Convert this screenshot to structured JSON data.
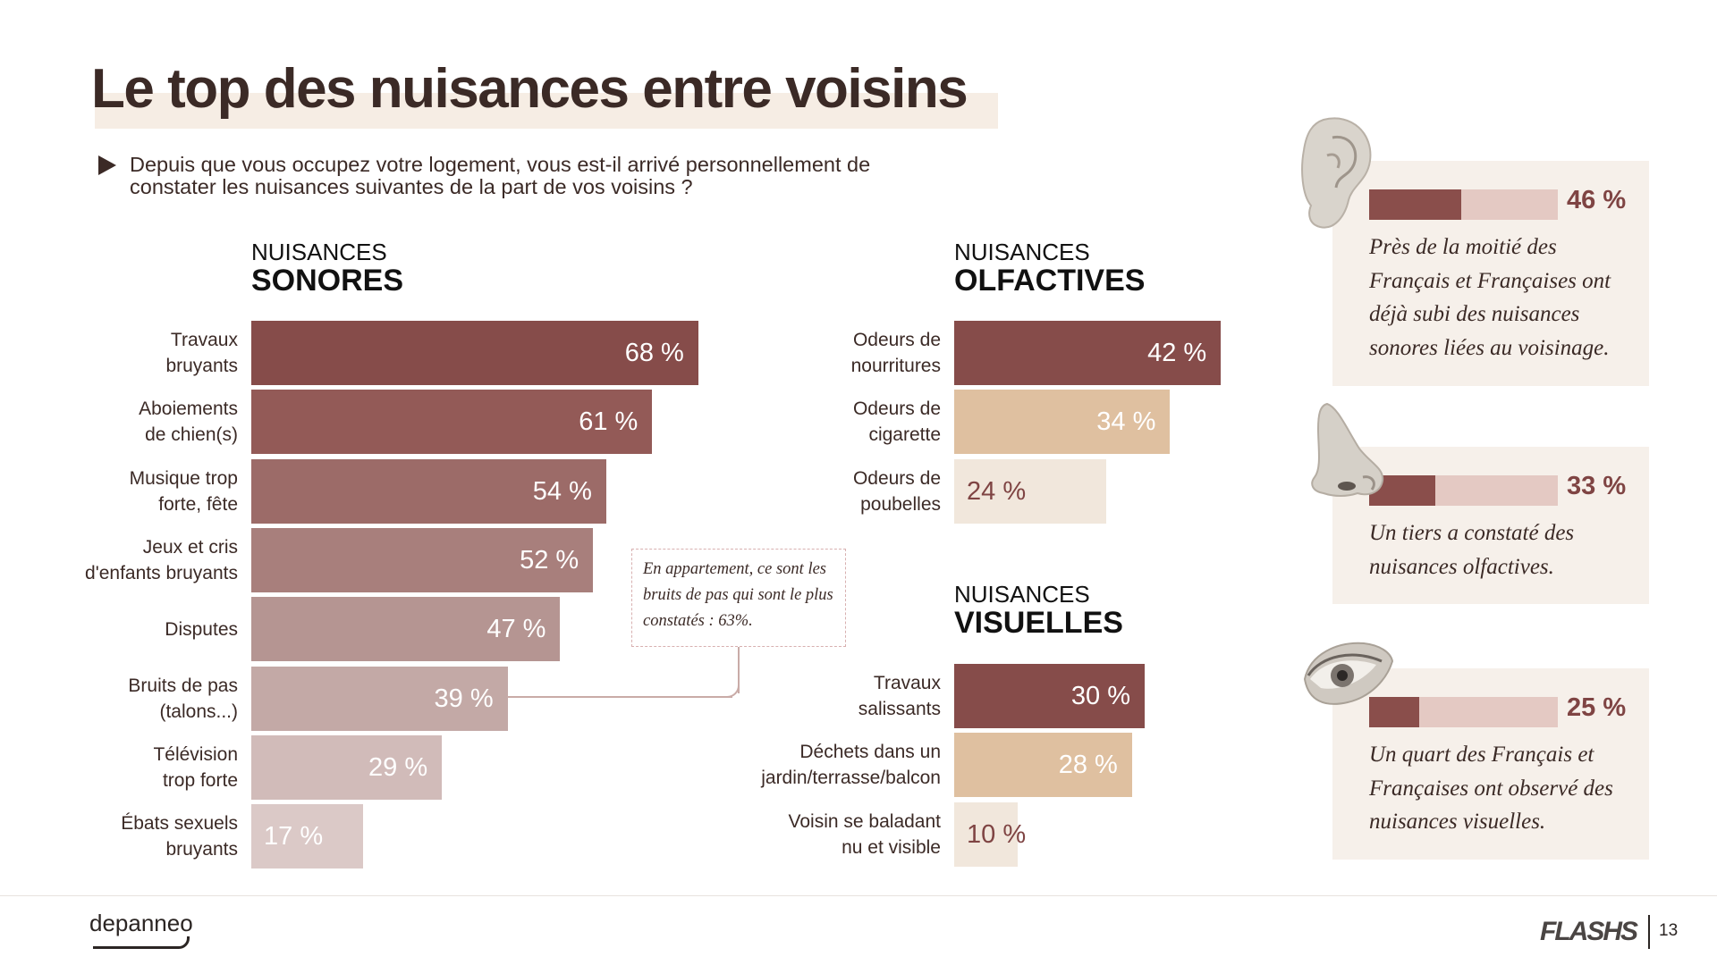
{
  "title": "Le top des nuisances entre voisins",
  "question": "Depuis que vous occupez votre logement, vous est-il arrivé personnellement de constater les nuisances suivantes de la part de vos voisins ?",
  "sections": {
    "sonores": {
      "small": "NUISANCES",
      "big": "SONORES"
    },
    "olfactives": {
      "small": "NUISANCES",
      "big": "OLFACTIVES"
    },
    "visuelles": {
      "small": "NUISANCES",
      "big": "VISUELLES"
    }
  },
  "chart_data": [
    {
      "type": "bar",
      "orientation": "horizontal",
      "title": "NUISANCES SONORES",
      "categories": [
        "Travaux bruyants",
        "Aboiements de chien(s)",
        "Musique trop forte, fête",
        "Jeux et cris d'enfants bruyants",
        "Disputes",
        "Bruits de pas (talons...)",
        "Télévision trop forte",
        "Ébats sexuels bruyants"
      ],
      "label_lines": [
        [
          "Travaux",
          "bruyants"
        ],
        [
          "Aboiements",
          "de chien(s)"
        ],
        [
          "Musique trop",
          "forte, fête"
        ],
        [
          "Jeux et cris",
          "d'enfants bruyants"
        ],
        [
          "Disputes"
        ],
        [
          "Bruits de pas",
          "(talons...)"
        ],
        [
          "Télévision",
          "trop forte"
        ],
        [
          "Ébats sexuels",
          "bruyants"
        ]
      ],
      "values": [
        68,
        61,
        54,
        52,
        47,
        39,
        29,
        17
      ],
      "value_labels": [
        "68 %",
        "61 %",
        "54 %",
        "52 %",
        "47 %",
        "39 %",
        "29 %",
        "17 %"
      ],
      "colors": [
        "#864c4a",
        "#935a57",
        "#9c6b68",
        "#a87f7c",
        "#b59592",
        "#c3a9a6",
        "#d1bbb9",
        "#dbc9c7"
      ],
      "value_colors": [
        "#ffffff",
        "#ffffff",
        "#ffffff",
        "#ffffff",
        "#ffffff",
        "#ffffff",
        "#ffffff",
        "#ffffff"
      ],
      "xlim": [
        0,
        100
      ]
    },
    {
      "type": "bar",
      "orientation": "horizontal",
      "title": "NUISANCES OLFACTIVES",
      "categories": [
        "Odeurs de nourritures",
        "Odeurs de cigarette",
        "Odeurs de poubelles"
      ],
      "label_lines": [
        [
          "Odeurs de",
          "nourritures"
        ],
        [
          "Odeurs de",
          "cigarette"
        ],
        [
          "Odeurs de",
          "poubelles"
        ]
      ],
      "values": [
        42,
        34,
        24
      ],
      "value_labels": [
        "42 %",
        "34 %",
        "24 %"
      ],
      "colors": [
        "#864c4a",
        "#dfc0a0",
        "#f1e7dc"
      ],
      "value_colors": [
        "#ffffff",
        "#ffffff",
        "#7f4443"
      ],
      "xlim": [
        0,
        100
      ]
    },
    {
      "type": "bar",
      "orientation": "horizontal",
      "title": "NUISANCES VISUELLES",
      "categories": [
        "Travaux salissants",
        "Déchets dans un jardin/terrasse/balcon",
        "Voisin se baladant nu et visible"
      ],
      "label_lines": [
        [
          "Travaux",
          "salissants"
        ],
        [
          "Déchets dans un",
          "jardin/terrasse/balcon"
        ],
        [
          "Voisin se baladant",
          "nu et visible"
        ]
      ],
      "values": [
        30,
        28,
        10
      ],
      "value_labels": [
        "30 %",
        "28 %",
        "10 %"
      ],
      "colors": [
        "#864c4a",
        "#dfc0a0",
        "#f1e7dc"
      ],
      "value_colors": [
        "#ffffff",
        "#ffffff",
        "#7f4443"
      ],
      "xlim": [
        0,
        100
      ]
    }
  ],
  "note": {
    "text": "En appartement, ce sont les bruits de pas qui sont le plus constatés : 63%."
  },
  "cards": [
    {
      "icon": "ear-icon",
      "value": 46,
      "pct": "46 %",
      "text": "Près de la moitié des Français et Françaises ont déjà subi des nuisances sonores liées au voisinage."
    },
    {
      "icon": "nose-icon",
      "value": 33,
      "pct": "33 %",
      "text": "Un tiers a constaté des nuisances olfactives."
    },
    {
      "icon": "eye-icon",
      "value": 25,
      "pct": "25 %",
      "text": "Un quart des Français et Françaises ont observé des nuisances visuelles."
    }
  ],
  "footer": {
    "logo": "depanneo",
    "brand": "FLASHS",
    "page": "13"
  }
}
